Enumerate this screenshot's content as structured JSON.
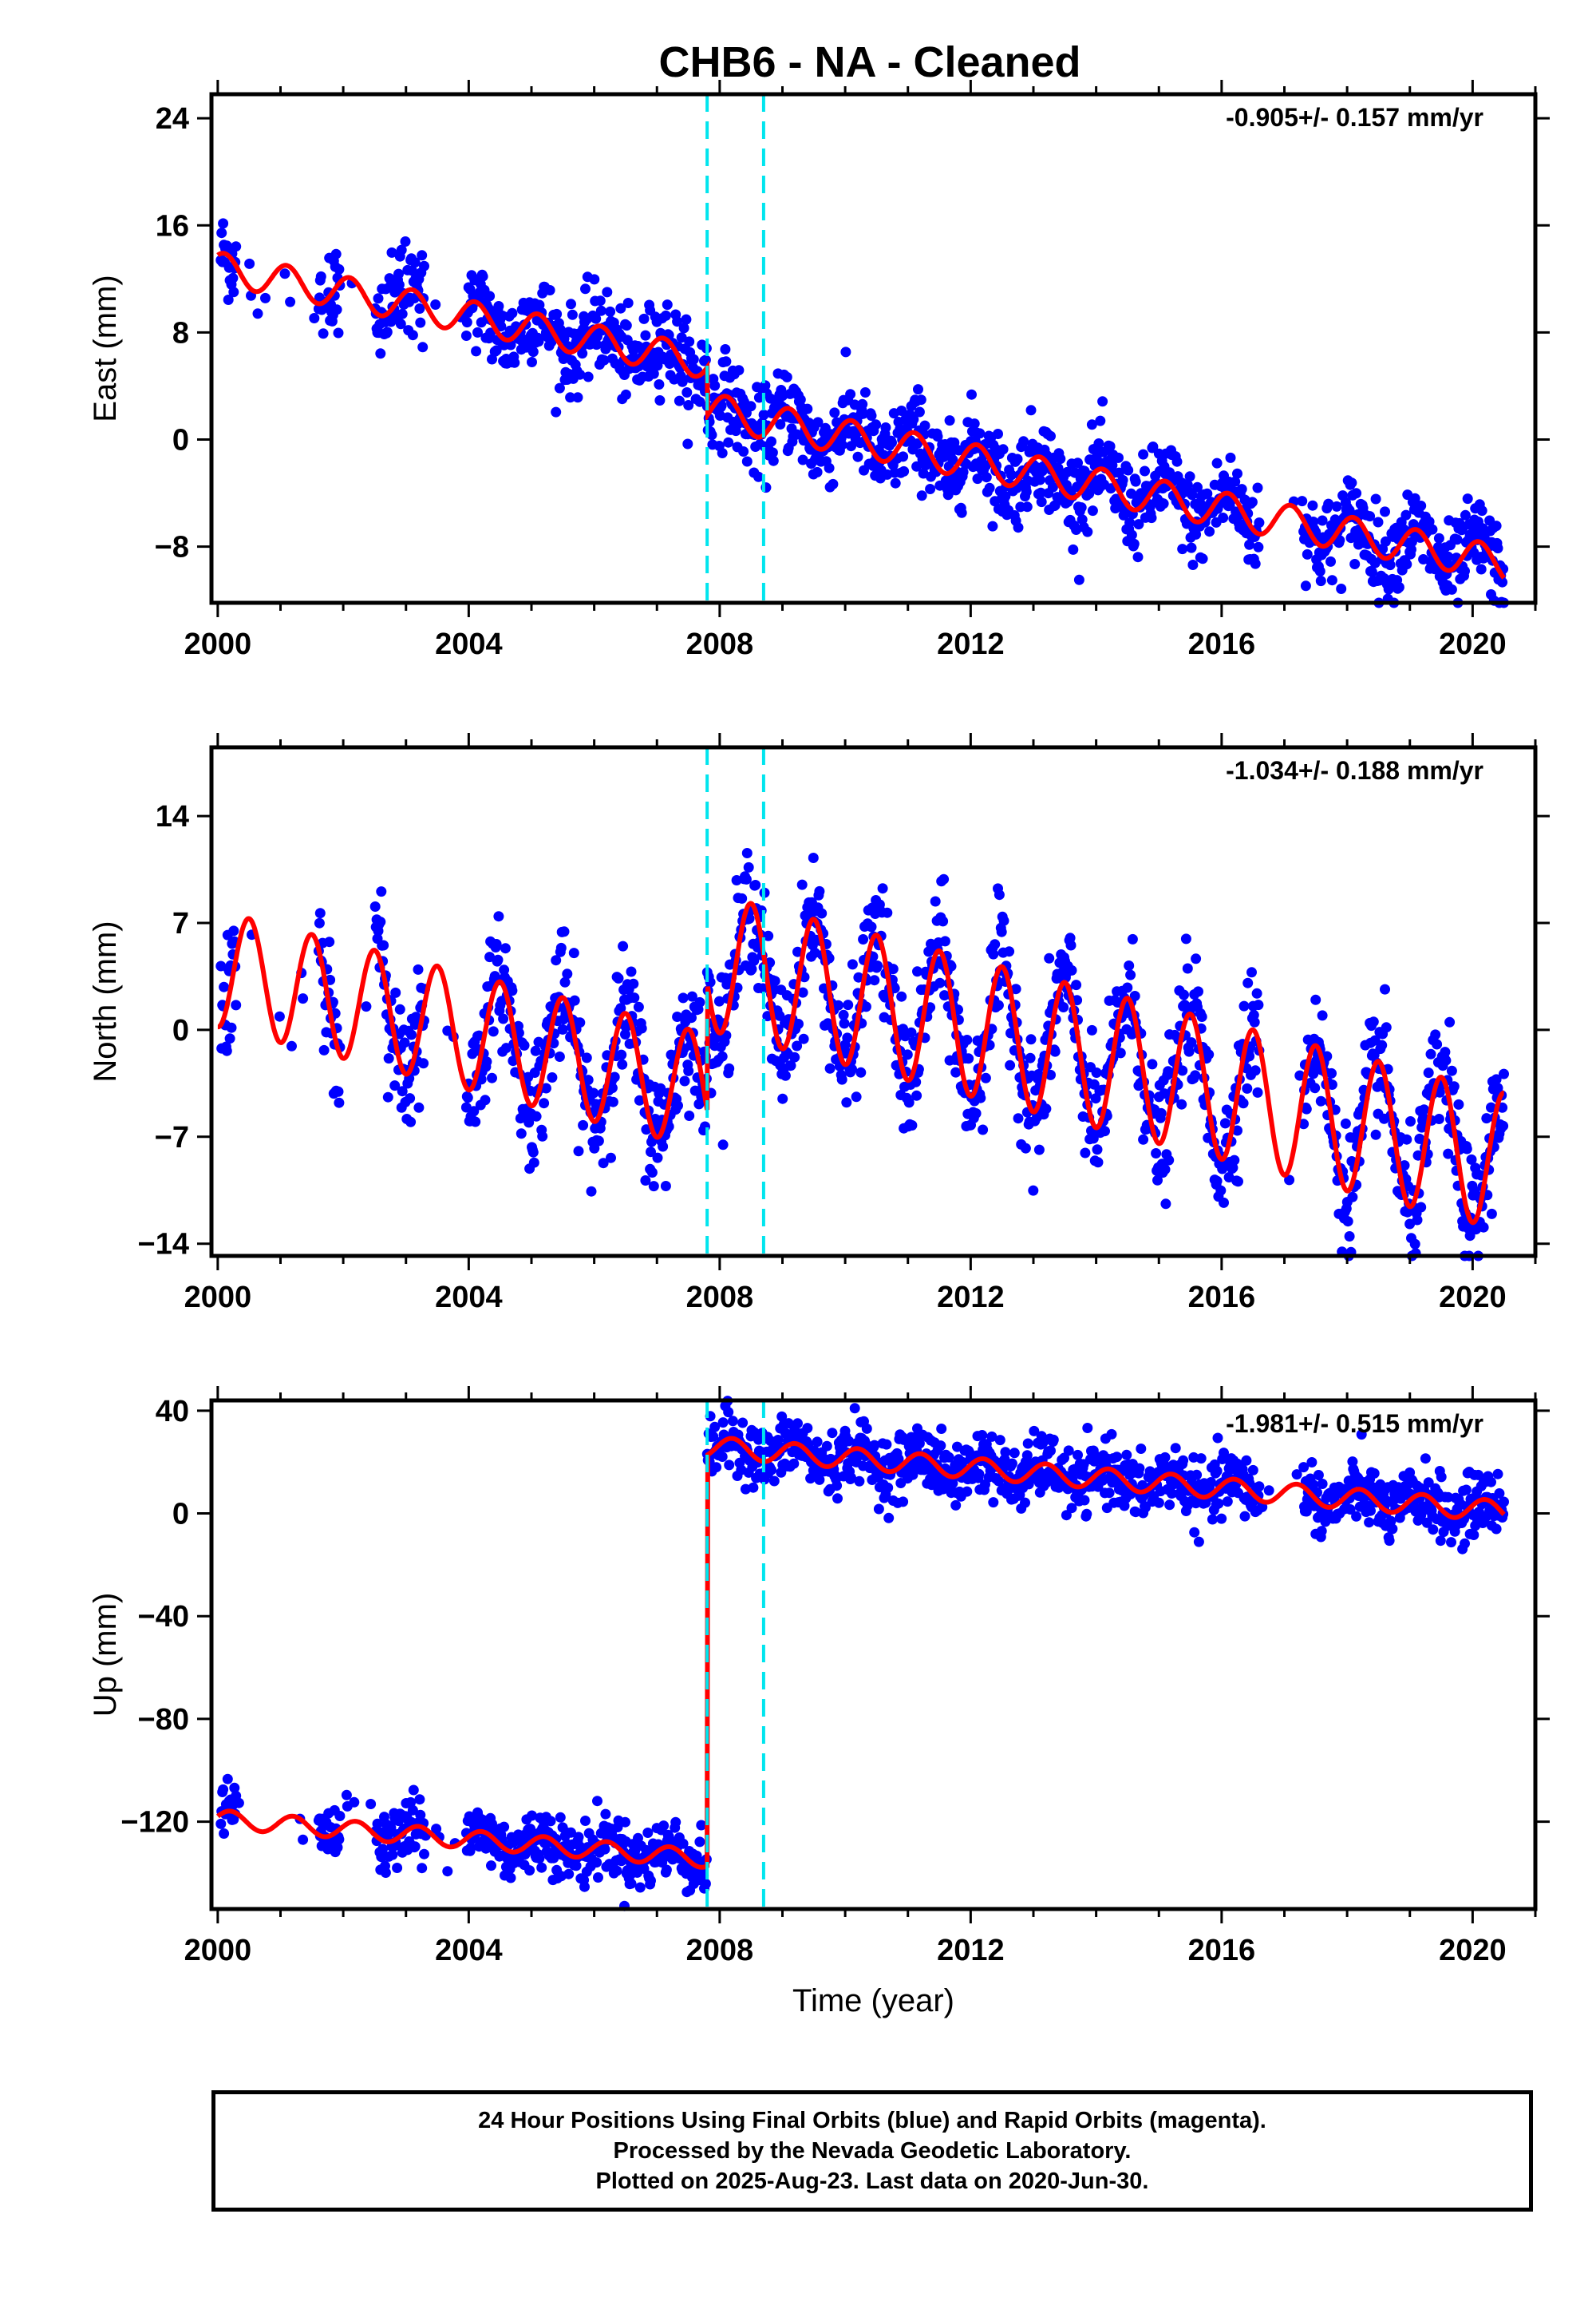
{
  "title": "CHB6  - NA - Cleaned",
  "colors": {
    "data": "#0000ff",
    "model": "#ff0000",
    "offset": "#00e5ee",
    "frame": "#000000"
  },
  "chart_data": [
    {
      "type": "scatter",
      "panel": "east",
      "ylabel": "East (mm)",
      "xlabel": "",
      "rate_label": "-0.905+/- 0.157 mm/yr",
      "xlim": [
        1999.9,
        2021.0
      ],
      "ylim": [
        -12.2,
        25.8
      ],
      "xticks": [
        "2000",
        "2004",
        "2008",
        "2012",
        "2016",
        "2020"
      ],
      "xtick_values": [
        2000,
        2004,
        2008,
        2012,
        2016,
        2020
      ],
      "yticks": [
        "24",
        "16",
        "8",
        "0",
        "−8"
      ],
      "ytick_values": [
        24,
        16,
        8,
        0,
        -8
      ],
      "offsets": [
        2007.8,
        2008.7
      ],
      "model": {
        "series_name": "model",
        "segments": [
          {
            "t0": 2000.0,
            "t1": 2007.8,
            "base": 12.8,
            "rate": -0.905,
            "amp": 1.2,
            "period": 1.0,
            "phase": 0.1
          },
          {
            "t0": 2007.8,
            "t1": 2020.5,
            "base": 2.2,
            "rate": -0.905,
            "amp": 1.3,
            "period": 1.0,
            "phase": 0.1
          }
        ]
      },
      "data_stats": {
        "noise": 1.6
      }
    },
    {
      "type": "scatter",
      "panel": "north",
      "ylabel": "North (mm)",
      "xlabel": "",
      "rate_label": "-1.034+/- 0.188 mm/yr",
      "xlim": [
        1999.9,
        2021.0
      ],
      "ylim": [
        -14.8,
        18.5
      ],
      "xticks": [
        "2000",
        "2004",
        "2008",
        "2012",
        "2016",
        "2020"
      ],
      "xtick_values": [
        2000,
        2004,
        2008,
        2012,
        2016,
        2020
      ],
      "yticks": [
        "14",
        "7",
        "0",
        "−7",
        "−14"
      ],
      "ytick_values": [
        14,
        7,
        0,
        -7,
        -14
      ],
      "offsets": [
        2007.8,
        2008.7
      ],
      "model": {
        "series_name": "model",
        "segments": [
          {
            "t0": 2000.0,
            "t1": 2007.8,
            "base": 4.0,
            "rate": -1.034,
            "amp": 3.8,
            "period": 1.0,
            "phase": 0.5
          },
          {
            "t0": 2007.8,
            "t1": 2020.5,
            "base": 4.5,
            "rate": -1.034,
            "amp": 4.5,
            "period": 1.0,
            "phase": 0.5
          }
        ]
      },
      "data_stats": {
        "noise": 2.0
      }
    },
    {
      "type": "scatter",
      "panel": "up",
      "ylabel": "Up (mm)",
      "xlabel": "Time (year)",
      "rate_label": "-1.981+/- 0.515 mm/yr",
      "xlim": [
        1999.9,
        2021.0
      ],
      "ylim": [
        -154,
        44
      ],
      "xticks": [
        "2000",
        "2004",
        "2008",
        "2012",
        "2016",
        "2020"
      ],
      "xtick_values": [
        2000,
        2004,
        2008,
        2012,
        2016,
        2020
      ],
      "yticks": [
        "40",
        "0",
        "−40",
        "−80",
        "−120"
      ],
      "ytick_values": [
        40,
        0,
        -40,
        -80,
        -120
      ],
      "offsets": [
        2007.8,
        2008.7
      ],
      "model": {
        "series_name": "model",
        "segments": [
          {
            "t0": 2000.0,
            "t1": 2007.8,
            "base": -119,
            "rate": -1.981,
            "amp": 3.5,
            "period": 1.0,
            "phase": 0.2
          },
          {
            "t0": 2007.8,
            "t1": 2020.5,
            "base": 26,
            "rate": -1.981,
            "amp": 4.0,
            "period": 1.0,
            "phase": 0.2
          }
        ]
      },
      "data_stats": {
        "noise": 6.0
      }
    }
  ],
  "footer": {
    "line1": "24 Hour Positions Using Final Orbits (blue) and Rapid Orbits (magenta).",
    "line2": "Processed by the Nevada Geodetic Laboratory.",
    "line3": "Plotted on 2025-Aug-23. Last data on 2020-Jun-30."
  }
}
